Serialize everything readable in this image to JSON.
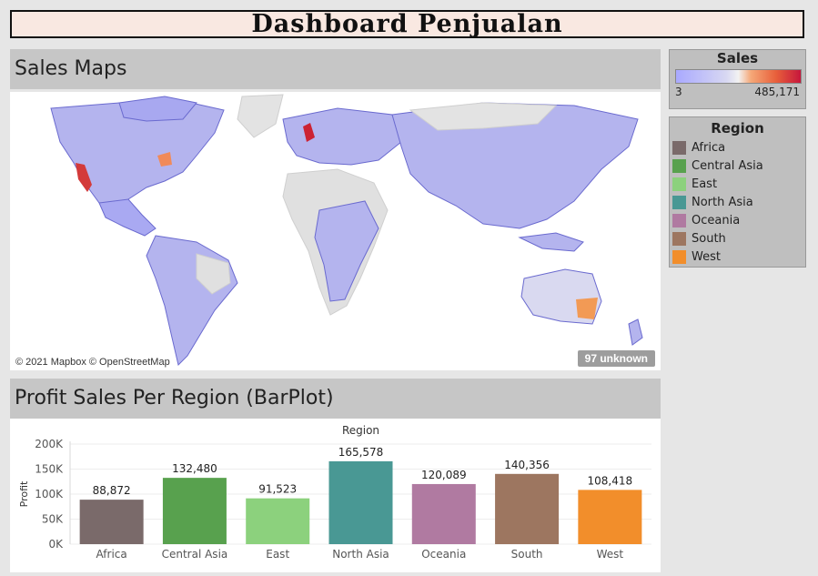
{
  "dashboard": {
    "title": "Dashboard Penjualan"
  },
  "map": {
    "heading": "Sales Maps",
    "copyright": "© 2021 Mapbox © OpenStreetMap",
    "unknown_badge": "97 unknown"
  },
  "sales_legend": {
    "title": "Sales",
    "min": "3",
    "max": "485,171",
    "colors": [
      "#a9a9ff",
      "#f2f2f2",
      "#c6163c"
    ]
  },
  "region_legend": {
    "title": "Region",
    "items": [
      {
        "label": "Africa",
        "color": "#7a6a6a"
      },
      {
        "label": "Central Asia",
        "color": "#58a14e"
      },
      {
        "label": "East",
        "color": "#8cd17d"
      },
      {
        "label": "North Asia",
        "color": "#499894"
      },
      {
        "label": "Oceania",
        "color": "#b07aa1"
      },
      {
        "label": "South",
        "color": "#9d7660"
      },
      {
        "label": "West",
        "color": "#f28e2b"
      }
    ]
  },
  "barplot": {
    "heading": "Profit Sales Per Region (BarPlot)"
  },
  "chart_data": {
    "type": "bar",
    "title": "Region",
    "xlabel": "",
    "ylabel": "Profit",
    "categories": [
      "Africa",
      "Central Asia",
      "East",
      "North Asia",
      "Oceania",
      "South",
      "West"
    ],
    "values": [
      88872,
      132480,
      91523,
      165578,
      120089,
      140356,
      108418
    ],
    "value_labels": [
      "88,872",
      "132,480",
      "91,523",
      "165,578",
      "120,089",
      "140,356",
      "108,418"
    ],
    "colors": [
      "#7a6a6a",
      "#58a14e",
      "#8cd17d",
      "#499894",
      "#b07aa1",
      "#9d7660",
      "#f28e2b"
    ],
    "yticks": [
      0,
      50000,
      100000,
      150000,
      200000
    ],
    "ytick_labels": [
      "0K",
      "50K",
      "100K",
      "150K",
      "200K"
    ],
    "ylim": [
      0,
      200000
    ],
    "grid": true
  }
}
